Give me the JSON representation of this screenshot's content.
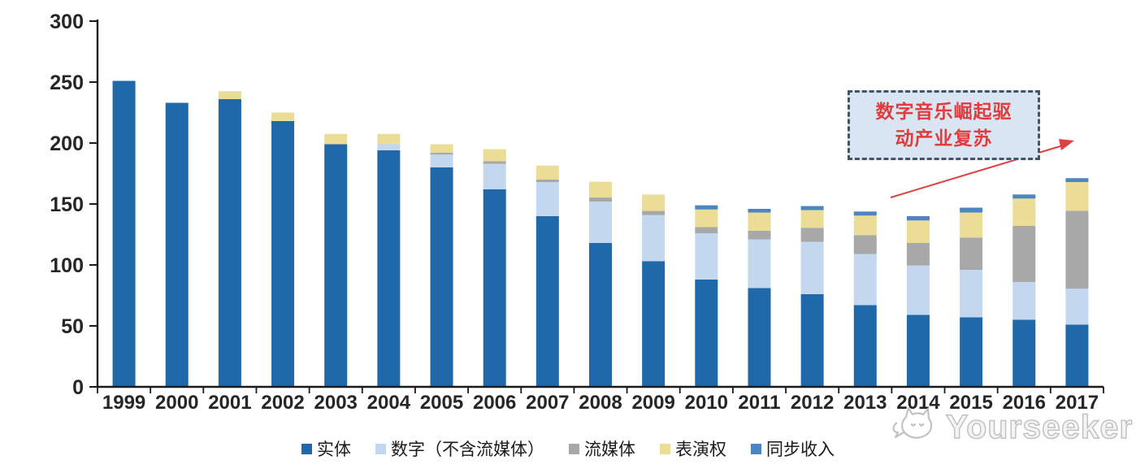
{
  "annotation": {
    "line1": "数字音乐崛起驱",
    "line2": "动产业复苏",
    "border_color": "#44546A",
    "fill_color": "#D9E5F3",
    "text_color": "#E03C3C",
    "arrow_color": "#E04040"
  },
  "watermark": {
    "text": "Yourseeker",
    "color": "#c2c2c2"
  },
  "chart_data": {
    "type": "bar",
    "stacked": true,
    "title": "",
    "xlabel": "",
    "ylabel": "",
    "ylim": [
      0,
      300
    ],
    "yticks": [
      0,
      50,
      100,
      150,
      200,
      250,
      300
    ],
    "grid": false,
    "legend_position": "bottom",
    "categories": [
      "1999",
      "2000",
      "2001",
      "2002",
      "2003",
      "2004",
      "2005",
      "2006",
      "2007",
      "2008",
      "2009",
      "2010",
      "2011",
      "2012",
      "2013",
      "2014",
      "2015",
      "2016",
      "2017"
    ],
    "series": [
      {
        "name": "实体",
        "color": "#1F68A9",
        "values": [
          251,
          233,
          236,
          218,
          199,
          194,
          180,
          162,
          140,
          118,
          103,
          88,
          81,
          76,
          67,
          59,
          57,
          55,
          51
        ]
      },
      {
        "name": "数字（不含流媒体）",
        "color": "#C3D8EE",
        "values": [
          0,
          0,
          0,
          0,
          0,
          5.5,
          10.5,
          21,
          28,
          34,
          38,
          38,
          40,
          43,
          42,
          40.5,
          39,
          31,
          29.5
        ]
      },
      {
        "name": "流媒体",
        "color": "#A8A8A8",
        "values": [
          0,
          0,
          0,
          0,
          0,
          0,
          1.5,
          2,
          2,
          3.3,
          3.3,
          5,
          7,
          11.5,
          15.5,
          18.5,
          26.5,
          46,
          64
        ]
      },
      {
        "name": "表演权",
        "color": "#EBDC96",
        "values": [
          0,
          0,
          6.5,
          7,
          8.5,
          8,
          7,
          10,
          11.5,
          13,
          13.5,
          14.5,
          15,
          14.5,
          16,
          18.5,
          20.5,
          22.5,
          23.5
        ]
      },
      {
        "name": "同步收入",
        "color": "#4B85C4",
        "values": [
          0,
          0,
          0,
          0,
          0,
          0,
          0,
          0,
          0,
          0,
          0,
          3.4,
          3,
          3.3,
          3.3,
          3.5,
          4,
          3.3,
          3.2
        ]
      }
    ]
  }
}
